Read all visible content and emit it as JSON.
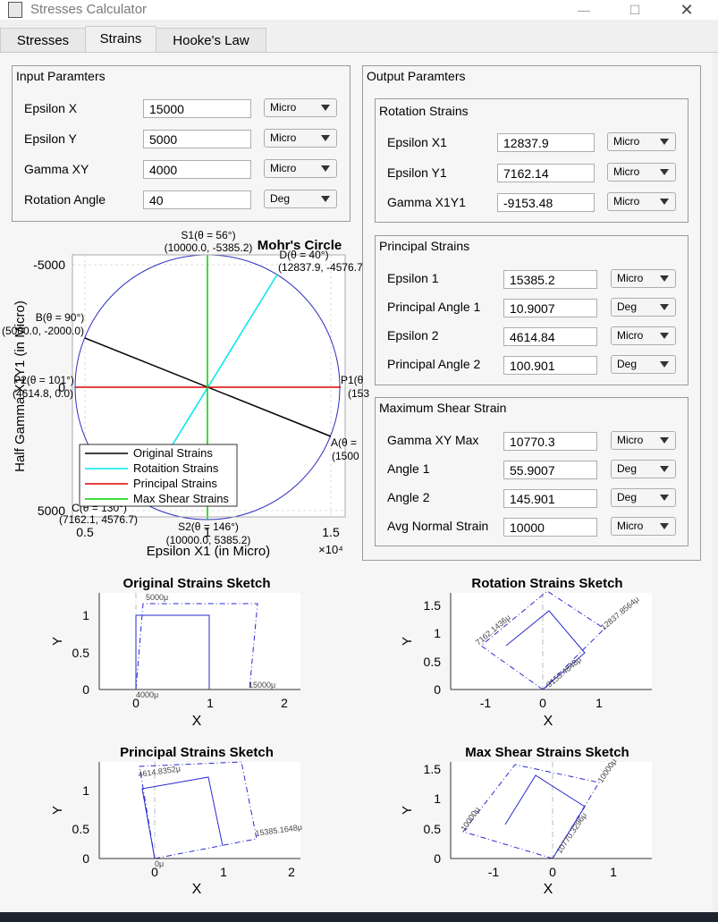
{
  "window": {
    "title": "Stresses Calculator",
    "minimize": "—",
    "maximize": "☐",
    "close": "✕"
  },
  "tabs": [
    {
      "label": "Stresses"
    },
    {
      "label": "Strains"
    },
    {
      "label": "Hooke's Law"
    }
  ],
  "input": {
    "title": "Input Paramters",
    "rows": [
      {
        "label": "Epsilon X",
        "value": "15000",
        "unit": "Micro"
      },
      {
        "label": "Epsilon Y",
        "value": "5000",
        "unit": "Micro"
      },
      {
        "label": "Gamma XY",
        "value": "4000",
        "unit": "Micro"
      },
      {
        "label": "Rotation Angle",
        "value": "40",
        "unit": "Deg"
      }
    ]
  },
  "output": {
    "title": "Output Paramters",
    "rotation": {
      "title": "Rotation Strains",
      "rows": [
        {
          "label": "Epsilon X1",
          "value": "12837.9",
          "unit": "Micro"
        },
        {
          "label": "Epsilon Y1",
          "value": "7162.14",
          "unit": "Micro"
        },
        {
          "label": "Gamma X1Y1",
          "value": "-9153.48",
          "unit": "Micro"
        }
      ]
    },
    "principal": {
      "title": "Principal Strains",
      "rows": [
        {
          "label": "Epsilon 1",
          "value": "15385.2",
          "unit": "Micro"
        },
        {
          "label": "Principal Angle 1",
          "value": "10.9007",
          "unit": "Deg"
        },
        {
          "label": "Epsilon 2",
          "value": "4614.84",
          "unit": "Micro"
        },
        {
          "label": "Principal Angle 2",
          "value": "100.901",
          "unit": "Deg"
        }
      ]
    },
    "maxshear": {
      "title": "Maximum Shear Strain",
      "rows": [
        {
          "label": "Gamma XY Max",
          "value": "10770.3",
          "unit": "Micro"
        },
        {
          "label": "Angle 1",
          "value": "55.9007",
          "unit": "Deg"
        },
        {
          "label": "Angle 2",
          "value": "145.901",
          "unit": "Deg"
        },
        {
          "label": "Avg Normal Strain",
          "value": "10000",
          "unit": "Micro"
        }
      ]
    }
  },
  "mohr": {
    "title": "Mohr's Circle",
    "xlabel": "Epsilon X1 (in Micro)",
    "ylabel": "Half Gamma X1Y1 (in Micro)",
    "xexp": "×10⁴",
    "xticks": [
      "0.5",
      "1",
      "1.5"
    ],
    "yticks": [
      "-5000",
      "0",
      "5000"
    ],
    "legend": [
      "Original Strains",
      "Rotaition Strains",
      "Principal Strains",
      "Max Shear Strains"
    ],
    "points": {
      "S1a": "S1(θ = 56°)",
      "S1b": "(10000.0, -5385.2)",
      "Da": "D(θ = 40°)",
      "Db": "(12837.9, -4576.7",
      "Ba": "B(θ = 90°)",
      "Bb": "(5000.0, -2000.0)",
      "P2a": "P2(θ = 101°)",
      "P2b": "(4614.8, 0.0)",
      "P1a": "P1(θ",
      "P1b": "(153",
      "Aa": "A(θ =",
      "Ab": "(1500",
      "Ca": "C(θ = 130°)",
      "Cb": "(7162.1, 4576.7)",
      "S2a": "S2(θ = 146°)",
      "S2b": "(10000.0, 5385.2)"
    },
    "colors": {
      "original": "#000000",
      "rotation": "#00e5ee",
      "principal": "#e00000",
      "maxshear": "#00d000",
      "circle": "#2f2fbf"
    }
  },
  "sketches": [
    {
      "title": "Original Strains Sketch",
      "xlabel": "X",
      "ylabel": "Y",
      "xticks": [
        "0",
        "1",
        "2"
      ],
      "yticks": [
        "0",
        "0.5",
        "1"
      ],
      "labels": [
        "5000μ",
        "15000μ",
        "4000μ"
      ]
    },
    {
      "title": "Rotation Strains Sketch",
      "xlabel": "X",
      "ylabel": "Y",
      "xticks": [
        "-1",
        "0",
        "1"
      ],
      "yticks": [
        "0",
        "0.5",
        "1",
        "1.5"
      ],
      "labels": [
        "7162.1436μ",
        "12837.8564μ",
        "-9153.4848μ"
      ]
    },
    {
      "title": "Principal Strains Sketch",
      "xlabel": "X",
      "ylabel": "Y",
      "xticks": [
        "0",
        "1",
        "2"
      ],
      "yticks": [
        "0",
        "0.5",
        "1"
      ],
      "labels": [
        "4614.8352μ",
        "15385.1648μ",
        "0μ"
      ]
    },
    {
      "title": "Max Shear Strains Sketch",
      "xlabel": "X",
      "ylabel": "Y",
      "xticks": [
        "-1",
        "0",
        "1"
      ],
      "yticks": [
        "0",
        "0.5",
        "1",
        "1.5"
      ],
      "labels": [
        "10000μ",
        "10000μ",
        "10770.3296μ"
      ]
    }
  ]
}
